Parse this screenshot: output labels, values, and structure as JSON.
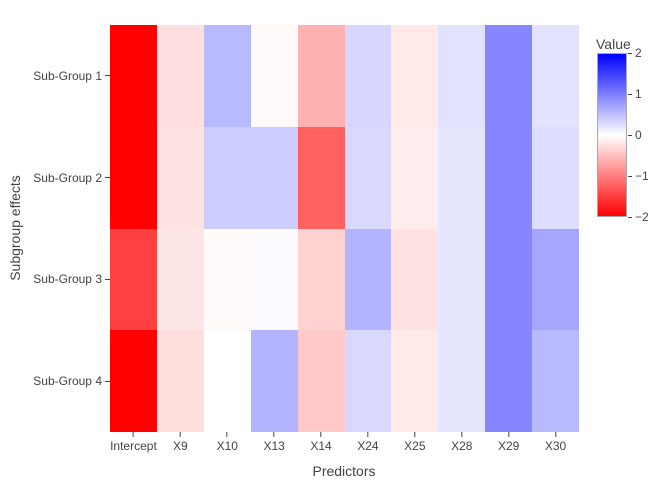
{
  "figure": {
    "background": "#ffffff",
    "text_color": "#444444"
  },
  "chart_data": {
    "type": "heatmap",
    "title": "",
    "xlabel": "Predictors",
    "ylabel": "Subgroup effects",
    "x_categories": [
      "Intercept",
      "X9",
      "X10",
      "X13",
      "X14",
      "X24",
      "X25",
      "X28",
      "X29",
      "X30"
    ],
    "y_categories": [
      "Sub-Group 1",
      "Sub-Group 2",
      "Sub-Group 3",
      "Sub-Group 4"
    ],
    "values": [
      [
        -2.0,
        -0.25,
        0.55,
        -0.05,
        -0.62,
        0.32,
        -0.17,
        0.23,
        0.95,
        0.22
      ],
      [
        -2.0,
        -0.22,
        0.4,
        0.4,
        -1.25,
        0.3,
        -0.15,
        0.2,
        0.95,
        0.27
      ],
      [
        -1.5,
        -0.2,
        -0.04,
        0.03,
        -0.36,
        0.6,
        -0.22,
        0.2,
        0.95,
        0.7
      ],
      [
        -2.0,
        -0.26,
        0.0,
        0.6,
        -0.42,
        0.3,
        -0.17,
        0.2,
        0.95,
        0.55
      ]
    ],
    "zmin": -2,
    "zmax": 2,
    "colorscale": {
      "min_color": "#ff0000",
      "mid_color": "#ffffff",
      "max_color": "#0000ff"
    },
    "colorbar": {
      "title": "Value",
      "tick_labels": [
        "2",
        "1",
        "0",
        "−1",
        "−2"
      ]
    },
    "grid": false,
    "legend_position": "right"
  }
}
